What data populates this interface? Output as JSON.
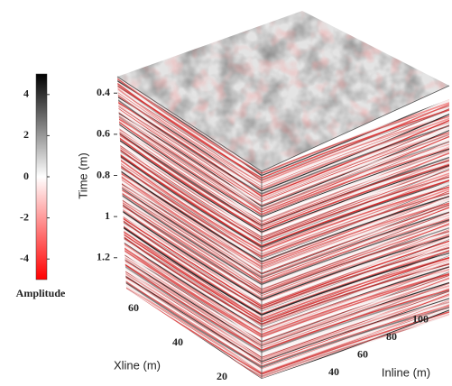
{
  "chart_data": {
    "type": "cube3d",
    "colorbar": {
      "label": "Amplitude",
      "lim": [
        -5,
        5
      ],
      "ticks": [
        4,
        2,
        0,
        -2,
        -4
      ],
      "colors": [
        "#ff0000",
        "#ffffff",
        "#000000"
      ]
    },
    "time_axis": {
      "label": "Time (m)",
      "lim": [
        0.32,
        1.35
      ],
      "ticks": [
        0.4,
        0.6,
        0.8,
        1,
        1.2
      ]
    },
    "xline_axis": {
      "label": "Xline (m)",
      "lim": [
        10,
        70
      ],
      "ticks": [
        20,
        40,
        60
      ]
    },
    "inline_axis": {
      "label": "Inline (m)",
      "lim": [
        20,
        110
      ],
      "ticks": [
        40,
        60,
        80,
        100
      ]
    }
  }
}
